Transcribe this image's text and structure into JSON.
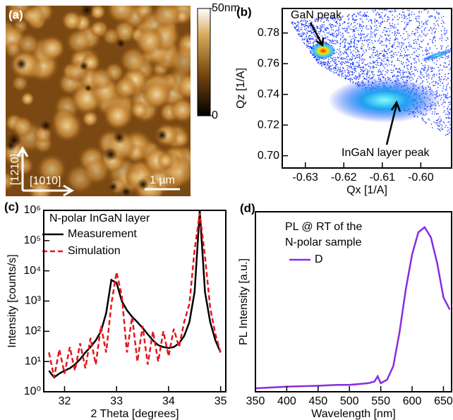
{
  "chart_data": [
    {
      "type": "image",
      "panel_label": "(a)",
      "clim": [
        0,
        50
      ],
      "colorbar_ticks": [
        {
          "value": 50,
          "label": "50nm"
        },
        0
      ],
      "annotations": [
        "[1210]",
        "[1010]",
        "1 µm"
      ]
    },
    {
      "type": "map",
      "panel_label": "(b)",
      "x_label": "Qx [1/A]",
      "y_label": "Qz [1/A]",
      "xlim": [
        -0.636,
        -0.592
      ],
      "ylim": [
        0.692,
        0.796
      ],
      "xticks": [
        -0.63,
        -0.62,
        -0.61,
        {
          "value": -0.6,
          "label": "-0.60"
        }
      ],
      "yticks": [
        {
          "value": 0.7,
          "label": "0.70"
        },
        0.72,
        0.74,
        0.76,
        0.78
      ],
      "annotations": [
        "GaN peak",
        "InGaN layer peak"
      ]
    },
    {
      "type": "line",
      "panel_label": "(c)",
      "title": "N-polar InGaN layer",
      "x_label": "2 Theta [degrees]",
      "y_label": "Intensity [counts/s]",
      "log_y": true,
      "xlim": [
        31.6,
        35.1
      ],
      "ylim": [
        1,
        1000000
      ],
      "xticks": [
        32,
        33,
        34,
        35
      ],
      "yticks": [
        {
          "value": 1,
          "label": "10⁰"
        },
        {
          "value": 10,
          "label": "10¹"
        },
        {
          "value": 100,
          "label": "10²"
        },
        {
          "value": 1000,
          "label": "10³"
        },
        {
          "value": 10000,
          "label": "10⁴"
        },
        {
          "value": 100000,
          "label": "10⁵"
        },
        {
          "value": 1000000,
          "label": "10⁶"
        }
      ],
      "x": [
        31.7,
        31.8,
        31.9,
        32.0,
        32.1,
        32.2,
        32.3,
        32.4,
        32.5,
        32.6,
        32.7,
        32.8,
        32.9,
        33.0,
        33.1,
        33.2,
        33.3,
        33.4,
        33.5,
        33.6,
        33.7,
        33.8,
        33.9,
        34.0,
        34.1,
        34.2,
        34.3,
        34.4,
        34.5,
        34.6,
        34.7,
        34.8,
        34.9,
        35.0
      ],
      "series": [
        {
          "name": "Measurement",
          "color": "#000000",
          "dash": false,
          "values": [
            5,
            3,
            4,
            5,
            6,
            8,
            12,
            20,
            30,
            50,
            100,
            400,
            5000,
            4000,
            1000,
            500,
            300,
            200,
            130,
            80,
            50,
            35,
            30,
            28,
            30,
            40,
            70,
            200,
            2000,
            1000000,
            2000,
            200,
            50,
            20
          ]
        },
        {
          "name": "Simulation",
          "color": "#e8141c",
          "dash": true,
          "values": [
            20,
            3,
            25,
            4,
            30,
            5,
            40,
            6,
            60,
            8,
            150,
            20,
            800,
            9000,
            1500,
            20,
            300,
            10,
            150,
            8,
            100,
            10,
            100,
            15,
            120,
            30,
            200,
            800,
            50000,
            800000,
            30000,
            600,
            80,
            20
          ]
        }
      ]
    },
    {
      "type": "line",
      "panel_label": "(d)",
      "title": [
        "PL @ RT of the",
        "N-polar sample"
      ],
      "x_label": "Wavelength [nm]",
      "y_label": "PL Intensity [a.u.]",
      "log_y": false,
      "xlim": [
        350,
        663
      ],
      "ylim": [
        0,
        1.05
      ],
      "xticks": [
        350,
        400,
        450,
        500,
        550,
        600,
        650
      ],
      "x": [
        350,
        400,
        450,
        480,
        500,
        530,
        540,
        545,
        550,
        560,
        570,
        580,
        590,
        600,
        610,
        620,
        630,
        640,
        650,
        660
      ],
      "series": [
        {
          "name": "D",
          "color": "#8a2be2",
          "dash": false,
          "values": [
            0.02,
            0.03,
            0.035,
            0.04,
            0.04,
            0.05,
            0.06,
            0.09,
            0.05,
            0.07,
            0.15,
            0.35,
            0.6,
            0.8,
            0.93,
            0.96,
            0.9,
            0.75,
            0.55,
            0.48
          ]
        }
      ]
    }
  ]
}
